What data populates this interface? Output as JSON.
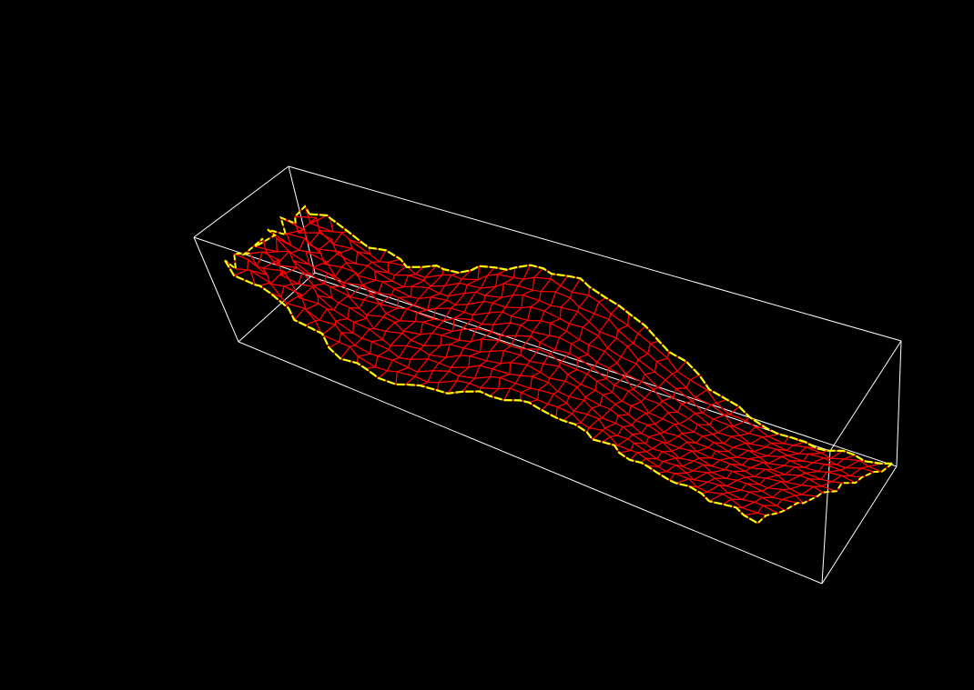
{
  "viewport": {
    "background": "#000000"
  },
  "scene": {
    "bounding_box_color": "#ffffff",
    "mesh_color": "#ff0000",
    "boundary_color": "#ffff00",
    "mesh": {
      "columns": 46,
      "rows": 14
    }
  }
}
